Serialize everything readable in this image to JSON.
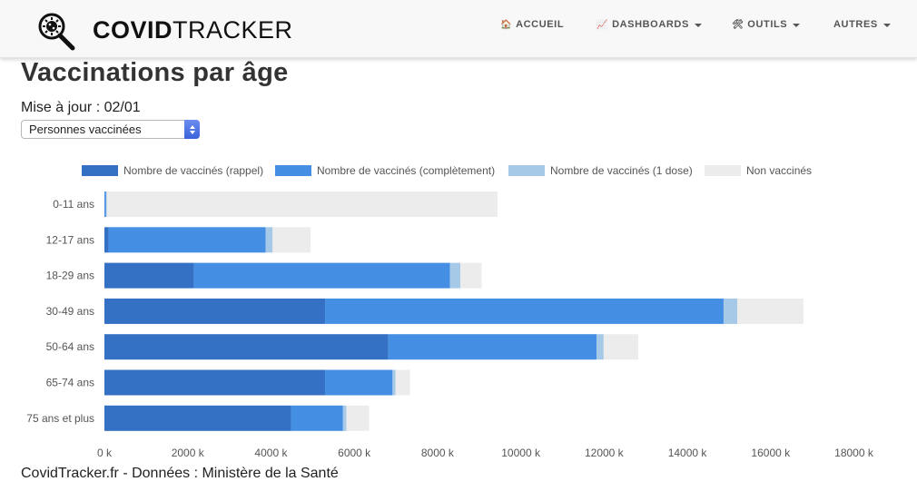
{
  "nav": {
    "brand_strong": "COVID",
    "brand_light": "TRACKER",
    "items": [
      {
        "label": "ACCUEIL",
        "icon": "🏠",
        "caret": false
      },
      {
        "label": "DASHBOARDS",
        "icon": "📈",
        "caret": true
      },
      {
        "label": "OUTILS",
        "icon": "🛠",
        "caret": true
      },
      {
        "label": "AUTRES",
        "icon": "",
        "caret": true
      }
    ]
  },
  "page": {
    "title": "Vaccinations par âge",
    "update": "Mise à jour : 02/01",
    "select_value": "Personnes vaccinées",
    "footer": "CovidTracker.fr - Données : Ministère de la Santé"
  },
  "colors": {
    "rappel": "#3470c4",
    "complet": "#448ee3",
    "une_dose": "#a7c9e8",
    "non_vaccines": "#ececec",
    "brand_accent": "#3b63d9"
  },
  "chart_data": {
    "type": "bar",
    "orientation": "horizontal",
    "stacked": true,
    "categories": [
      "0-11 ans",
      "12-17 ans",
      "18-29 ans",
      "30-49 ans",
      "50-64 ans",
      "65-74 ans",
      "75 ans et plus"
    ],
    "series": [
      {
        "name": "Nombre de vaccinés (rappel)",
        "values": [
          0,
          100,
          2150,
          5300,
          6820,
          5300,
          4480
        ]
      },
      {
        "name": "Nombre de vaccinés (complètement)",
        "values": [
          40,
          3770,
          6150,
          9570,
          5000,
          1620,
          1250
        ]
      },
      {
        "name": "Nombre de vaccinés (1 dose)",
        "values": [
          20,
          170,
          250,
          330,
          170,
          70,
          80
        ]
      },
      {
        "name": "Non vaccinés",
        "values": [
          9380,
          910,
          510,
          1590,
          830,
          350,
          550
        ]
      }
    ],
    "xlim": [
      0,
      18000
    ],
    "xticks": [
      0,
      2000,
      4000,
      6000,
      8000,
      10000,
      12000,
      14000,
      16000,
      18000
    ],
    "xtick_labels": [
      "0 k",
      "2000 k",
      "4000 k",
      "6000 k",
      "8000 k",
      "10000 k",
      "12000 k",
      "14000 k",
      "16000 k",
      "18000 k"
    ],
    "legend_position": "top",
    "grid": false
  }
}
